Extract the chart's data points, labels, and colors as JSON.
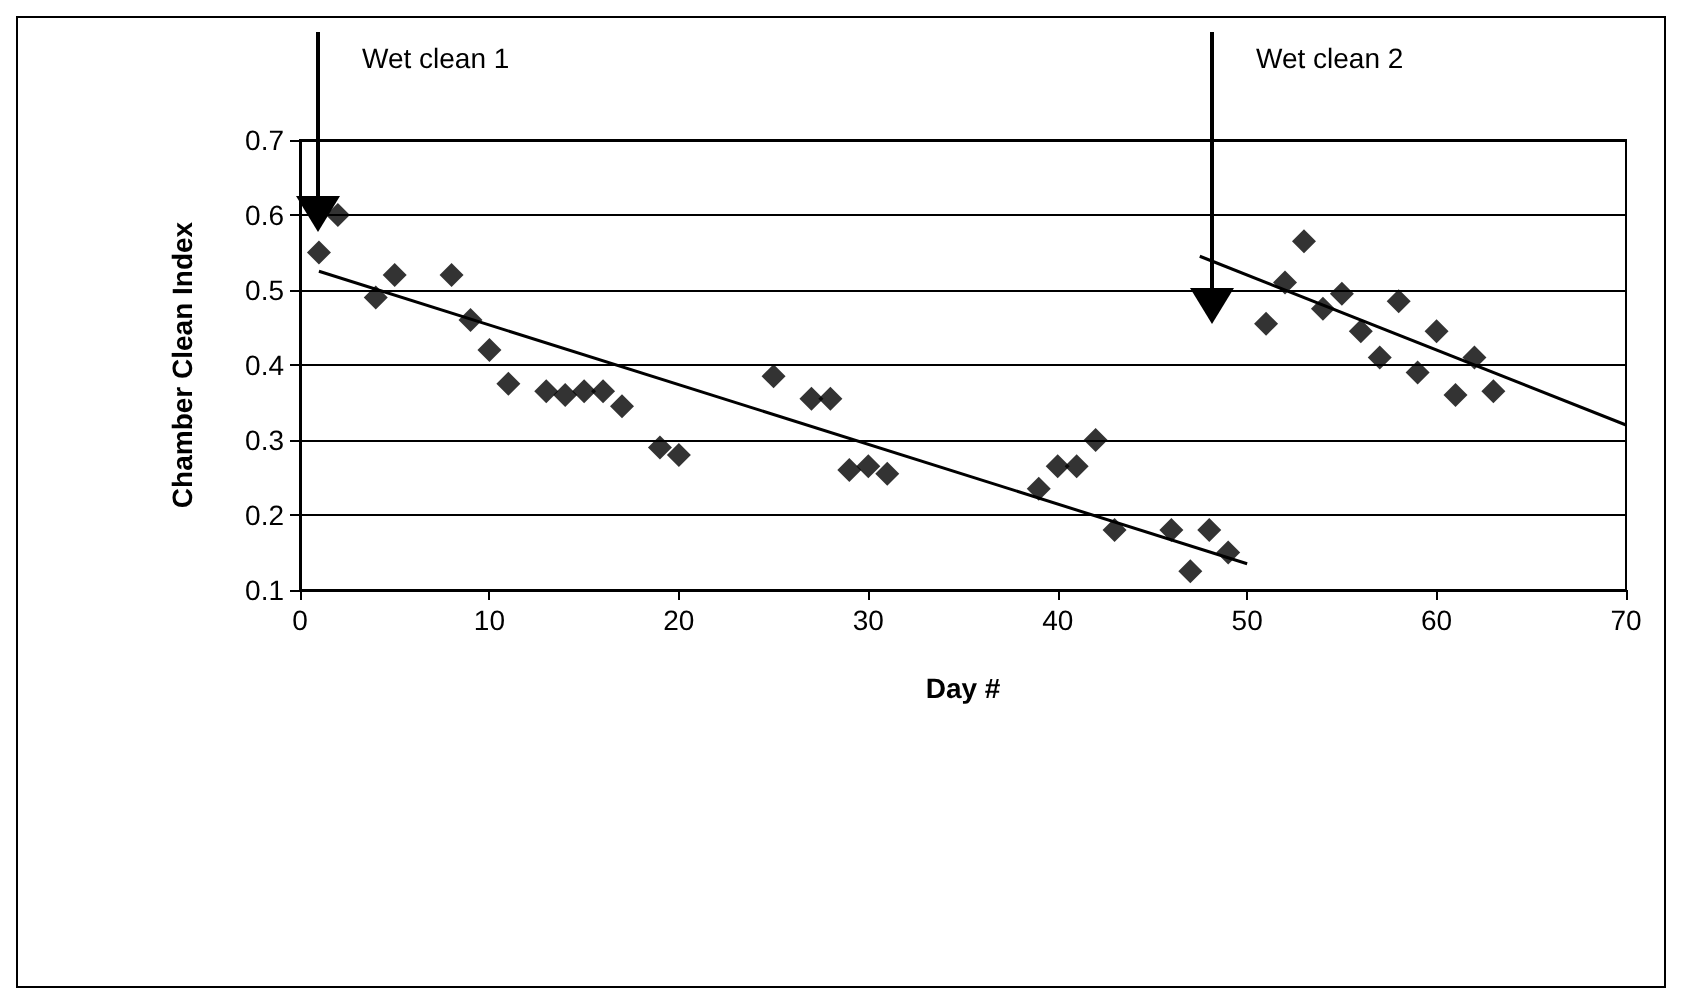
{
  "chart_data": {
    "type": "scatter",
    "xlabel": "Day #",
    "ylabel": "Chamber Clean Index",
    "xlim": [
      0,
      70
    ],
    "xticks": [
      0,
      10,
      20,
      30,
      40,
      50,
      60,
      70
    ],
    "ylim": [
      0.1,
      0.7
    ],
    "yticks": [
      0.1,
      0.2,
      0.3,
      0.4,
      0.5,
      0.6,
      0.7
    ],
    "grid": "y",
    "marker": "diamond",
    "series": [
      {
        "color": "#000000",
        "x": [
          1,
          2,
          4,
          5,
          8,
          9,
          10,
          11,
          13,
          14,
          15,
          16,
          17,
          19,
          20,
          25,
          27,
          28,
          29,
          30,
          31,
          39,
          40,
          41,
          42,
          43,
          46,
          47,
          48,
          49,
          51,
          52,
          53,
          54,
          55,
          56,
          57,
          58,
          59,
          60,
          61,
          62,
          63
        ],
        "values": [
          0.55,
          0.6,
          0.49,
          0.52,
          0.52,
          0.46,
          0.42,
          0.375,
          0.365,
          0.36,
          0.365,
          0.365,
          0.345,
          0.29,
          0.28,
          0.385,
          0.355,
          0.355,
          0.26,
          0.265,
          0.255,
          0.235,
          0.265,
          0.265,
          0.3,
          0.18,
          0.18,
          0.125,
          0.18,
          0.15,
          0.455,
          0.51,
          0.565,
          0.475,
          0.495,
          0.445,
          0.41,
          0.485,
          0.39,
          0.445,
          0.36,
          0.41,
          0.365
        ]
      },
      {
        "type": "line",
        "color": "#000000",
        "marker": "none",
        "line_style": "solid",
        "x": [
          1,
          50
        ],
        "values": [
          0.525,
          0.135
        ]
      },
      {
        "type": "line",
        "color": "#000000",
        "marker": "none",
        "line_style": "solid",
        "x": [
          47.5,
          70
        ],
        "values": [
          0.545,
          0.32
        ]
      }
    ],
    "annotations": [
      "Wet clean 1",
      "Wet clean 2"
    ]
  }
}
